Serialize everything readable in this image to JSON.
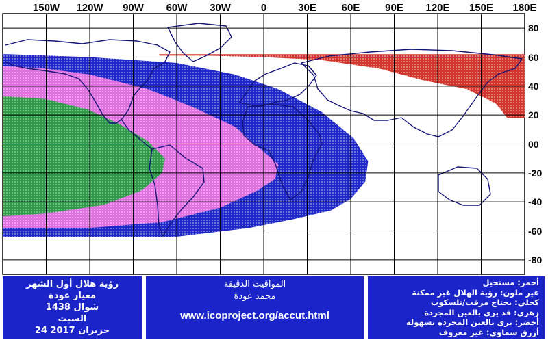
{
  "map": {
    "longitude_labels": [
      "150W",
      "120W",
      "90W",
      "60W",
      "30W",
      "0",
      "30E",
      "60E",
      "90E",
      "120E",
      "150E",
      "180E"
    ],
    "latitude_labels": [
      "80",
      "60",
      "40",
      "20",
      "00",
      "-20",
      "-40",
      "-60",
      "-80"
    ],
    "colors": {
      "red": "#d0362c",
      "blue": "#1e28c8",
      "pink": "#e070e0",
      "green": "#2c9a46",
      "grid": "#000000",
      "coast": "#141478"
    }
  },
  "panel_left": {
    "line1": "رؤية هلال أول الشهر",
    "line2": "معيار عودة",
    "line3": "شوال 1438",
    "line4": "السبت",
    "line5": "24 حزيران 2017"
  },
  "panel_middle": {
    "title": "المواقيت الدقيقة",
    "author": "محمد عودة",
    "url": "www.icoproject.org/accut.html"
  },
  "legend": [
    {
      "text": "أحمر: مستحيل",
      "color": "#d0362c"
    },
    {
      "text": "غير ملون: رؤية الهلال غير ممكنة",
      "color": "#ffffff"
    },
    {
      "text": "كحلي: يحتاج مرقب/تلسكوب",
      "color": "#1e28c8"
    },
    {
      "text": "زهري: قد يرى بالعين المجردة",
      "color": "#e070e0"
    },
    {
      "text": "أخضر: يرى بالعين المجردة بسهولة",
      "color": "#2c9a46"
    },
    {
      "text": "أزرق سماوي: غير معروف",
      "color": "#5ac8f0"
    }
  ]
}
